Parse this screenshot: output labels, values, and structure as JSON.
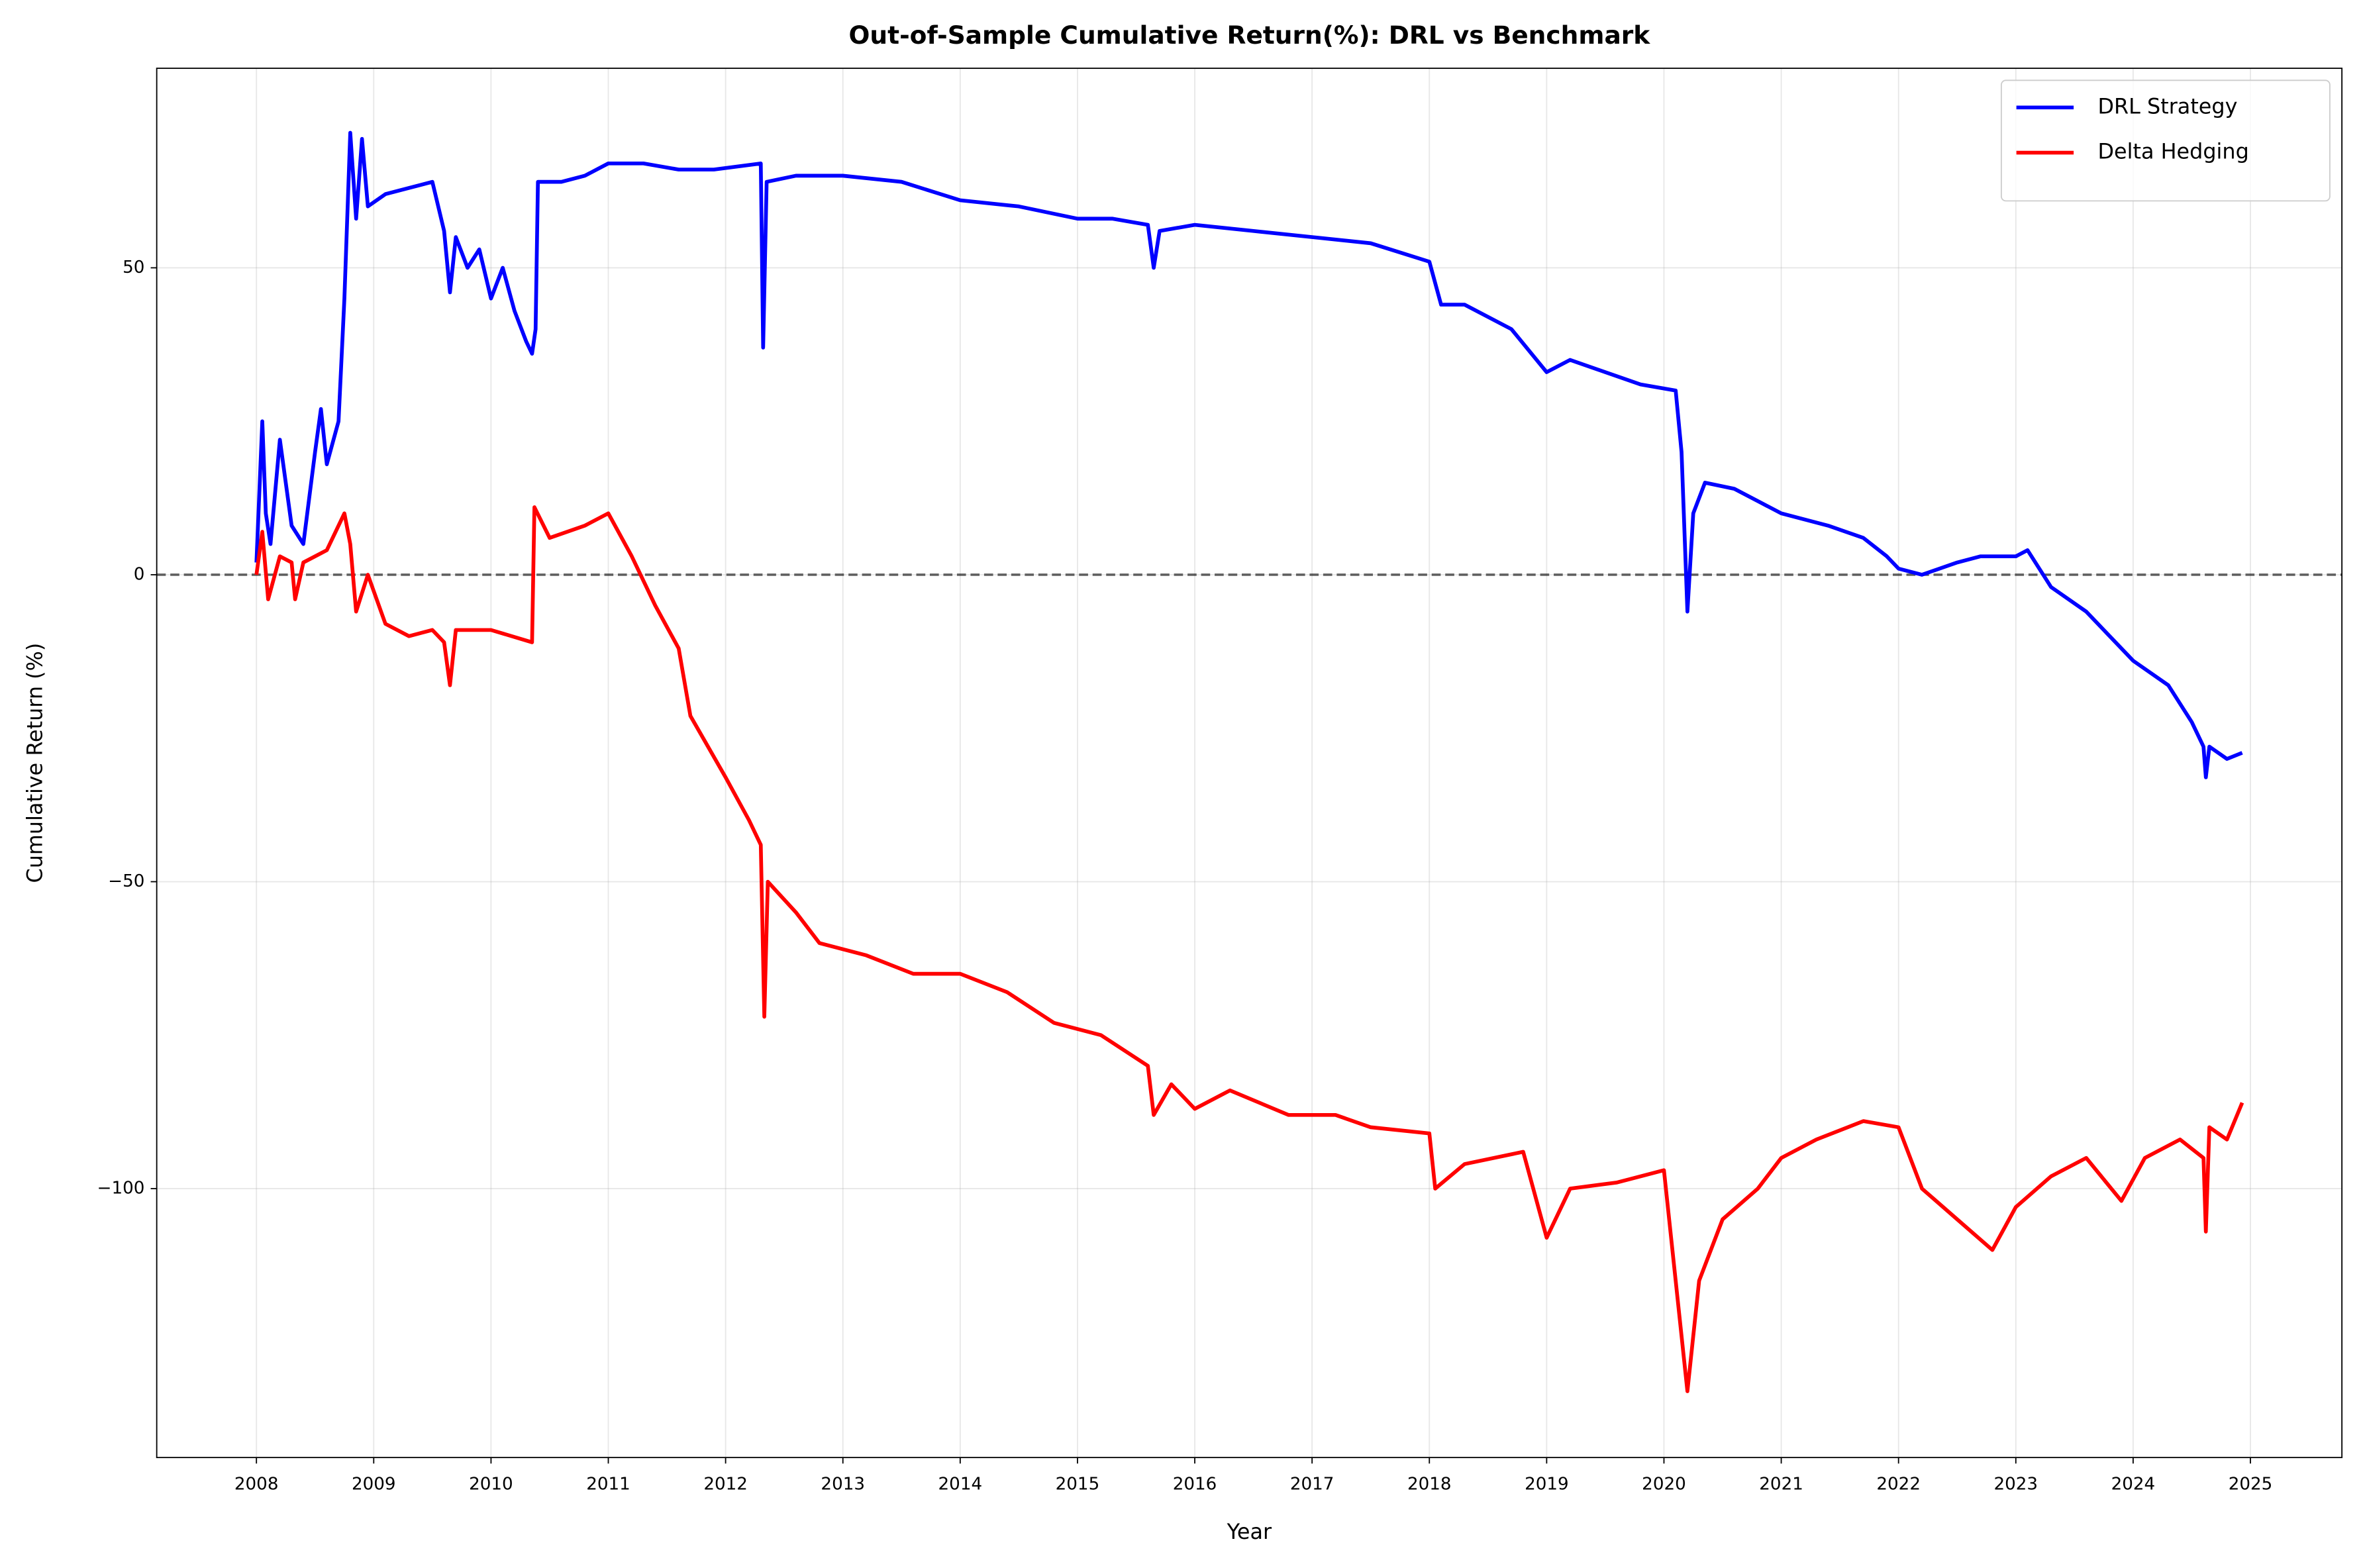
{
  "chart_data": {
    "type": "line",
    "title": "Out-of-Sample Cumulative Return(%): DRL vs Benchmark",
    "xlabel": "Year",
    "ylabel": "Cumulative Return (%)",
    "xlim": [
      2007.15,
      2025.78
    ],
    "ylim": [
      -143.8,
      82.5
    ],
    "xticks": [
      2008,
      2009,
      2010,
      2011,
      2012,
      2013,
      2014,
      2015,
      2016,
      2017,
      2018,
      2019,
      2020,
      2021,
      2022,
      2023,
      2024,
      2025
    ],
    "yticks": [
      {
        "value": -100,
        "label": "−100"
      },
      {
        "value": -50,
        "label": "−50"
      },
      0,
      50
    ],
    "grid": true,
    "legend": "upper right",
    "hline": 0,
    "series": [
      {
        "name": "DRL Strategy",
        "color": "#0000ff",
        "x": [
          2008.0,
          2008.05,
          2008.08,
          2008.12,
          2008.2,
          2008.3,
          2008.4,
          2008.5,
          2008.55,
          2008.6,
          2008.7,
          2008.75,
          2008.8,
          2008.85,
          2008.9,
          2008.95,
          2009.1,
          2009.3,
          2009.5,
          2009.6,
          2009.65,
          2009.7,
          2009.8,
          2009.9,
          2010.0,
          2010.1,
          2010.2,
          2010.3,
          2010.35,
          2010.38,
          2010.4,
          2010.6,
          2010.8,
          2011.0,
          2011.3,
          2011.6,
          2011.9,
          2012.3,
          2012.32,
          2012.35,
          2012.6,
          2013.0,
          2013.5,
          2014.0,
          2014.5,
          2015.0,
          2015.3,
          2015.6,
          2015.65,
          2015.7,
          2016.0,
          2016.5,
          2017.0,
          2017.5,
          2018.0,
          2018.1,
          2018.3,
          2018.7,
          2019.0,
          2019.2,
          2019.5,
          2019.8,
          2020.1,
          2020.15,
          2020.2,
          2020.25,
          2020.35,
          2020.6,
          2021.0,
          2021.4,
          2021.7,
          2021.9,
          2022.0,
          2022.2,
          2022.5,
          2022.7,
          2023.0,
          2023.1,
          2023.3,
          2023.6,
          2024.0,
          2024.3,
          2024.5,
          2024.6,
          2024.62,
          2024.65,
          2024.8,
          2024.93
        ],
        "values": [
          2,
          25,
          10,
          5,
          22,
          8,
          5,
          20,
          27,
          18,
          25,
          45,
          72,
          58,
          71,
          60,
          62,
          63,
          64,
          56,
          46,
          55,
          50,
          53,
          45,
          50,
          43,
          38,
          36,
          40,
          64,
          64,
          65,
          67,
          67,
          66,
          66,
          67,
          37,
          64,
          65,
          65,
          64,
          61,
          60,
          58,
          58,
          57,
          50,
          56,
          57,
          56,
          55,
          54,
          51,
          44,
          44,
          40,
          33,
          35,
          33,
          31,
          30,
          20,
          -6,
          10,
          15,
          14,
          10,
          8,
          6,
          3,
          1,
          0,
          2,
          3,
          3,
          4,
          -2,
          -6,
          -14,
          -18,
          -24,
          -28,
          -33,
          -28,
          -30,
          -29
        ]
      },
      {
        "name": "Delta Hedging",
        "color": "#ff0000",
        "x": [
          2008.0,
          2008.05,
          2008.1,
          2008.2,
          2008.3,
          2008.33,
          2008.4,
          2008.5,
          2008.6,
          2008.75,
          2008.8,
          2008.85,
          2008.95,
          2009.1,
          2009.3,
          2009.5,
          2009.6,
          2009.65,
          2009.7,
          2010.0,
          2010.35,
          2010.37,
          2010.5,
          2010.8,
          2011.0,
          2011.2,
          2011.4,
          2011.6,
          2011.7,
          2011.85,
          2012.0,
          2012.2,
          2012.3,
          2012.33,
          2012.36,
          2012.6,
          2012.8,
          2013.2,
          2013.6,
          2014.0,
          2014.4,
          2014.8,
          2015.2,
          2015.6,
          2015.65,
          2015.8,
          2016.0,
          2016.3,
          2016.8,
          2017.2,
          2017.5,
          2018.0,
          2018.05,
          2018.3,
          2018.8,
          2019.0,
          2019.2,
          2019.6,
          2020.0,
          2020.2,
          2020.3,
          2020.5,
          2020.8,
          2021.0,
          2021.3,
          2021.7,
          2022.0,
          2022.2,
          2022.5,
          2022.8,
          2023.0,
          2023.3,
          2023.6,
          2023.9,
          2024.1,
          2024.4,
          2024.6,
          2024.62,
          2024.65,
          2024.8,
          2024.93
        ],
        "values": [
          0,
          7,
          -4,
          3,
          2,
          -4,
          2,
          3,
          4,
          10,
          5,
          -6,
          0,
          -8,
          -10,
          -9,
          -11,
          -18,
          -9,
          -9,
          -11,
          11,
          6,
          8,
          10,
          3,
          -5,
          -12,
          -23,
          -28,
          -33,
          -40,
          -44,
          -72,
          -50,
          -55,
          -60,
          -62,
          -65,
          -65,
          -68,
          -73,
          -75,
          -80,
          -88,
          -83,
          -87,
          -84,
          -88,
          -88,
          -90,
          -91,
          -100,
          -96,
          -94,
          -108,
          -100,
          -99,
          -97,
          -133,
          -115,
          -105,
          -100,
          -95,
          -92,
          -89,
          -90,
          -100,
          -105,
          -110,
          -103,
          -98,
          -95,
          -102,
          -95,
          -92,
          -95,
          -107,
          -90,
          -92,
          -86
        ]
      }
    ]
  }
}
